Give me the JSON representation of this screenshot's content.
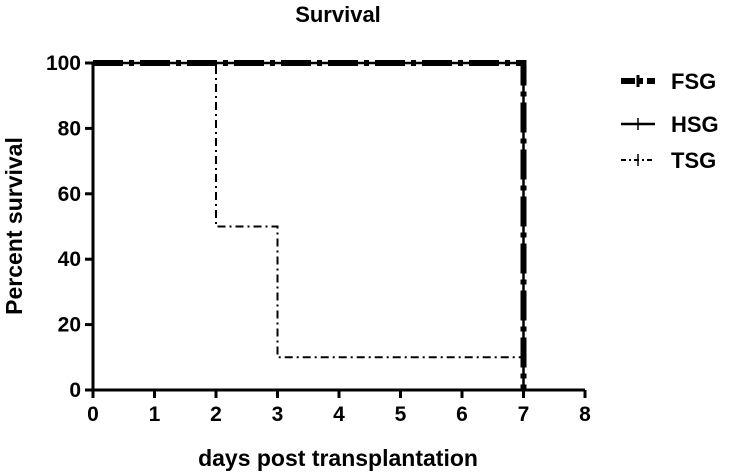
{
  "chart_data": {
    "type": "line",
    "subtype": "kaplan-meier step survival curve",
    "title": "Survival",
    "xlabel": "days post transplantation",
    "ylabel": "Percent survival",
    "xlim": [
      0,
      8
    ],
    "ylim": [
      0,
      100
    ],
    "x_ticks": [
      "0",
      "1",
      "2",
      "3",
      "4",
      "5",
      "6",
      "7",
      "8"
    ],
    "y_ticks": [
      "0",
      "20",
      "40",
      "60",
      "80",
      "100"
    ],
    "grid": false,
    "legend_position": "right",
    "series": [
      {
        "name": "FSG",
        "style": "thick dash-dot",
        "points": [
          [
            0,
            100
          ],
          [
            7,
            100
          ],
          [
            7,
            0
          ]
        ]
      },
      {
        "name": "HSG",
        "style": "solid",
        "points": [
          [
            0,
            100
          ],
          [
            7,
            100
          ],
          [
            7,
            0
          ]
        ]
      },
      {
        "name": "TSG",
        "style": "dash-dot",
        "points": [
          [
            0,
            100
          ],
          [
            2,
            100
          ],
          [
            2,
            50
          ],
          [
            3,
            50
          ],
          [
            3,
            10
          ],
          [
            7,
            10
          ],
          [
            7,
            0
          ]
        ]
      }
    ]
  }
}
